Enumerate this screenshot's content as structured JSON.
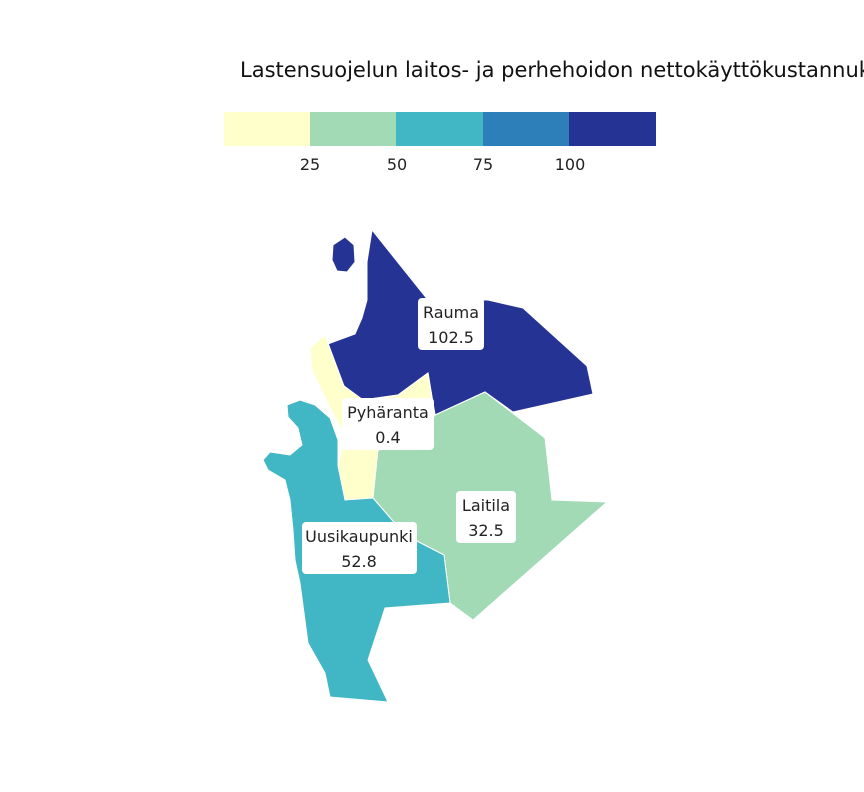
{
  "title": "Lastensuojelun laitos- ja perhehoidon nettokäyttökustannuk",
  "colors": {
    "bin1": "#ffffcc",
    "bin2": "#a1dab4",
    "bin3": "#41b6c4",
    "bin4": "#2c7fb8",
    "bin5": "#253494"
  },
  "legend": {
    "ticks": [
      "25",
      "50",
      "75",
      "100"
    ]
  },
  "regions": [
    {
      "name": "Rauma",
      "value": "102.5",
      "color": "#253494"
    },
    {
      "name": "Pyhäranta",
      "value": "0.4",
      "color": "#ffffcc"
    },
    {
      "name": "Laitila",
      "value": "32.5",
      "color": "#a1dab4"
    },
    {
      "name": "Uusikaupunki",
      "value": "52.8",
      "color": "#41b6c4"
    }
  ]
}
